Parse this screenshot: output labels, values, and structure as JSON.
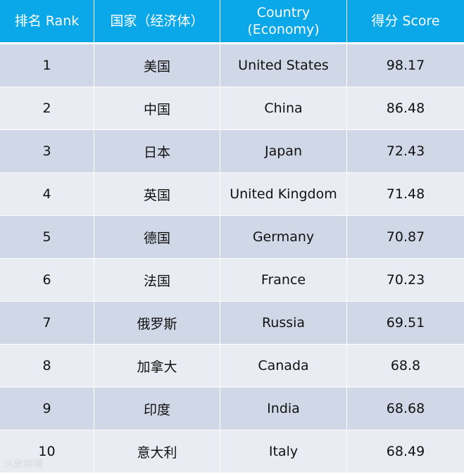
{
  "header": {
    "rank": "排名 Rank",
    "country_cn": "国家（经济体）",
    "country_en_line1": "Country",
    "country_en_line2": "(Economy)",
    "score": "得分 Score"
  },
  "rows": [
    {
      "rank": "1",
      "cn": "美国",
      "en": "United States",
      "score": "98.17"
    },
    {
      "rank": "2",
      "cn": "中国",
      "en": "China",
      "score": "86.48"
    },
    {
      "rank": "3",
      "cn": "日本",
      "en": "Japan",
      "score": "72.43"
    },
    {
      "rank": "4",
      "cn": "英国",
      "en": "United Kingdom",
      "score": "71.48"
    },
    {
      "rank": "5",
      "cn": "德国",
      "en": "Germany",
      "score": "70.87"
    },
    {
      "rank": "6",
      "cn": "法国",
      "en": "France",
      "score": "70.23"
    },
    {
      "rank": "7",
      "cn": "俄罗斯",
      "en": "Russia",
      "score": "69.51"
    },
    {
      "rank": "8",
      "cn": "加拿大",
      "en": "Canada",
      "score": "68.8"
    },
    {
      "rank": "9",
      "cn": "印度",
      "en": "India",
      "score": "68.68"
    },
    {
      "rank": "10",
      "cn": "意大利",
      "en": "Italy",
      "score": "68.49"
    }
  ],
  "watermark": "大数跨境",
  "colors": {
    "header_bg": "#0aa8e8",
    "row_dark": "#d0d7e6",
    "row_light": "#e9ecf3"
  }
}
